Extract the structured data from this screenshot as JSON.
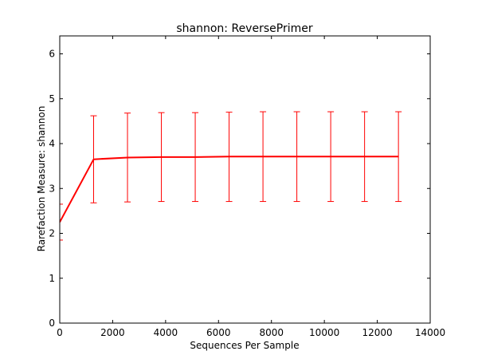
{
  "chart_data": {
    "type": "line",
    "title": "shannon: ReversePrimer",
    "xlabel": "Sequences Per Sample",
    "ylabel": "Rarefaction Measure: shannon",
    "xlim": [
      0,
      14000
    ],
    "ylim": [
      0,
      6.4
    ],
    "x_ticks": [
      "0",
      "2000",
      "4000",
      "6000",
      "8000",
      "10000",
      "12000",
      "14000"
    ],
    "y_ticks": [
      "0",
      "1",
      "2",
      "3",
      "4",
      "5",
      "6"
    ],
    "grid": false,
    "series": [
      {
        "color": "#ff0000",
        "x": [
          0,
          1280,
          2560,
          3840,
          5120,
          6400,
          7680,
          8960,
          10240,
          11520,
          12800
        ],
        "y": [
          2.25,
          3.65,
          3.69,
          3.7,
          3.7,
          3.71,
          3.71,
          3.71,
          3.71,
          3.71,
          3.71
        ],
        "yerr_low": [
          1.85,
          2.68,
          2.7,
          2.71,
          2.71,
          2.71,
          2.71,
          2.71,
          2.71,
          2.71,
          2.71
        ],
        "yerr_high": [
          2.65,
          4.62,
          4.68,
          4.69,
          4.69,
          4.7,
          4.71,
          4.71,
          4.71,
          4.71,
          4.71
        ]
      }
    ]
  }
}
